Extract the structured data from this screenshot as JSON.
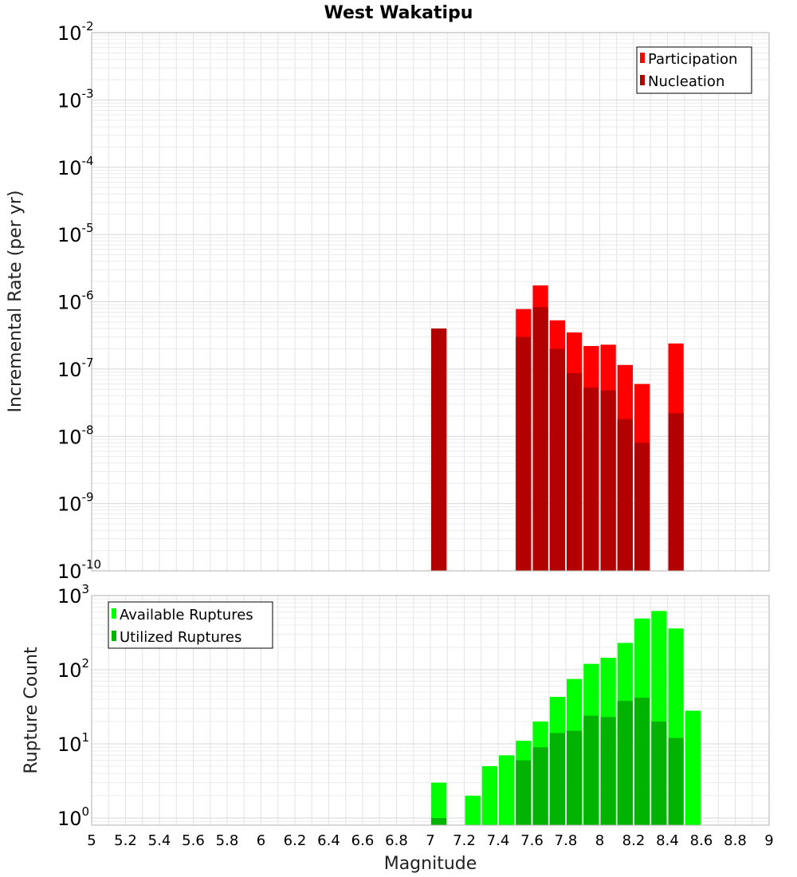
{
  "chart_data": [
    {
      "type": "bar",
      "title": "West Wakatipu",
      "ylabel": "Incremental Rate (per yr)",
      "xlabel": "",
      "yscale": "log",
      "ylim": [
        1e-10,
        0.01
      ],
      "xlim": [
        5,
        9
      ],
      "bin_width": 0.1,
      "legend_position": "top-right",
      "series": [
        {
          "name": "Participation",
          "color": "#ff0000",
          "x": [
            7.05,
            7.55,
            7.65,
            7.75,
            7.85,
            7.95,
            8.05,
            8.15,
            8.25,
            8.45
          ],
          "values": [
            4e-07,
            7.8e-07,
            1.75e-06,
            5.3e-07,
            3.5e-07,
            2.2e-07,
            2.3e-07,
            1.15e-07,
            6e-08,
            2.4e-07
          ]
        },
        {
          "name": "Nucleation",
          "color": "#b30000",
          "x": [
            7.05,
            7.55,
            7.65,
            7.75,
            7.85,
            7.95,
            8.05,
            8.15,
            8.25,
            8.45
          ],
          "values": [
            4e-07,
            3e-07,
            8.3e-07,
            2e-07,
            8.7e-08,
            5.3e-08,
            4.8e-08,
            1.8e-08,
            8e-09,
            2.2e-08
          ]
        }
      ]
    },
    {
      "type": "bar",
      "title": "",
      "ylabel": "Rupture Count",
      "xlabel": "Magnitude",
      "yscale": "log",
      "ylim": [
        0.8,
        1000
      ],
      "xlim": [
        5,
        9
      ],
      "bin_width": 0.1,
      "legend_position": "top-left",
      "x_ticks": [
        "5",
        "5.2",
        "5.4",
        "5.6",
        "5.8",
        "6",
        "6.2",
        "6.4",
        "6.6",
        "6.8",
        "7",
        "7.2",
        "7.4",
        "7.6",
        "7.8",
        "8",
        "8.2",
        "8.4",
        "8.6",
        "8.8",
        "9"
      ],
      "series": [
        {
          "name": "Available Ruptures",
          "color": "#00ff00",
          "x": [
            7.05,
            7.25,
            7.35,
            7.45,
            7.55,
            7.65,
            7.75,
            7.85,
            7.95,
            8.05,
            8.15,
            8.25,
            8.35,
            8.45,
            8.55
          ],
          "values": [
            3,
            2,
            5,
            7,
            11,
            20,
            43,
            75,
            120,
            145,
            230,
            490,
            620,
            360,
            28
          ]
        },
        {
          "name": "Utilized Ruptures",
          "color": "#00b300",
          "x": [
            7.05,
            7.55,
            7.65,
            7.75,
            7.85,
            7.95,
            8.05,
            8.15,
            8.25,
            8.35,
            8.45
          ],
          "values": [
            1,
            6,
            9,
            14,
            15,
            24,
            23,
            38,
            42,
            20,
            12
          ]
        }
      ]
    }
  ]
}
